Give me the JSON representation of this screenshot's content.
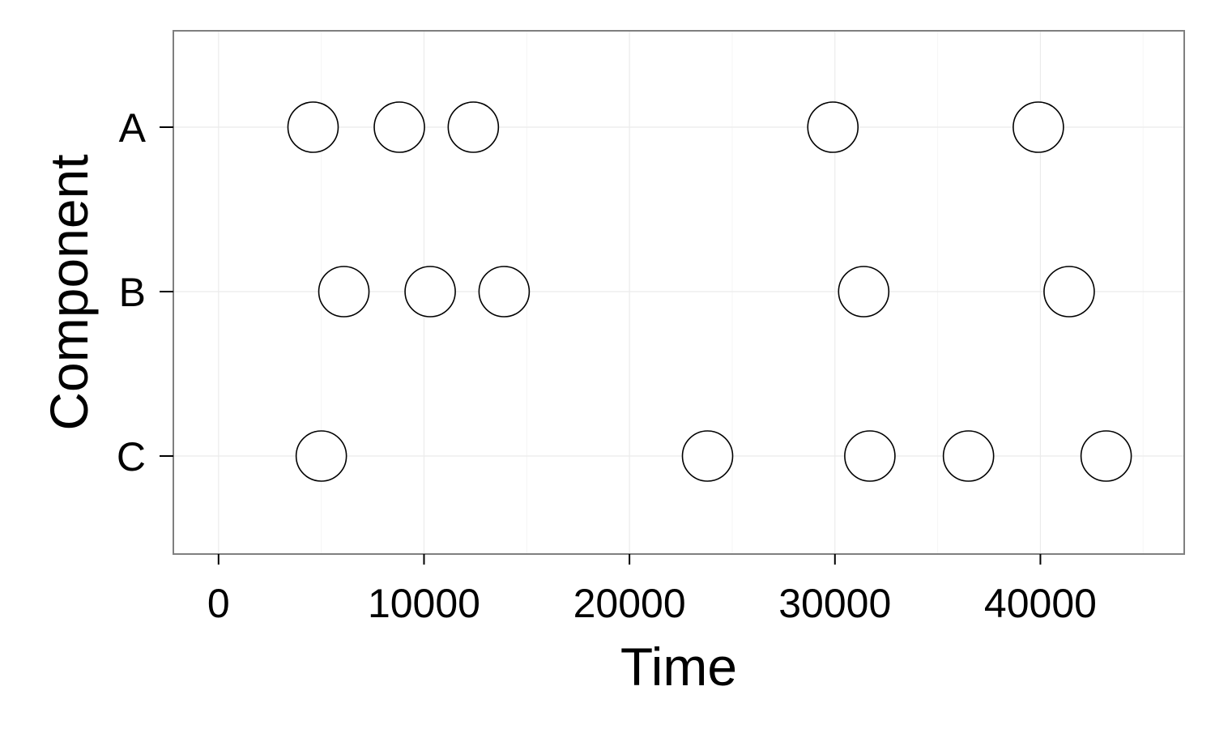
{
  "chart_data": {
    "type": "scatter",
    "title": "",
    "xlabel": "Time",
    "ylabel": "Component",
    "xlim": [
      -2200,
      47000
    ],
    "x_ticks": [
      0,
      10000,
      20000,
      30000,
      40000
    ],
    "x_tick_labels": [
      "0",
      "10000",
      "20000",
      "30000",
      "40000"
    ],
    "categories": [
      "A",
      "B",
      "C"
    ],
    "grid": true,
    "marker": "open-circle",
    "points": [
      {
        "category": "A",
        "x": 4600
      },
      {
        "category": "A",
        "x": 8800
      },
      {
        "category": "A",
        "x": 12400
      },
      {
        "category": "A",
        "x": 29900
      },
      {
        "category": "A",
        "x": 39900
      },
      {
        "category": "B",
        "x": 6100
      },
      {
        "category": "B",
        "x": 10300
      },
      {
        "category": "B",
        "x": 13900
      },
      {
        "category": "B",
        "x": 31400
      },
      {
        "category": "B",
        "x": 41400
      },
      {
        "category": "C",
        "x": 5000
      },
      {
        "category": "C",
        "x": 23800
      },
      {
        "category": "C",
        "x": 31700
      },
      {
        "category": "C",
        "x": 36500
      },
      {
        "category": "C",
        "x": 43200
      }
    ]
  },
  "colors": {
    "panel_border": "#7f7f7f",
    "grid_major": "#ebebeb",
    "grid_minor": "#f5f5f5",
    "marker_stroke": "#000000",
    "marker_fill": "#ffffff"
  }
}
